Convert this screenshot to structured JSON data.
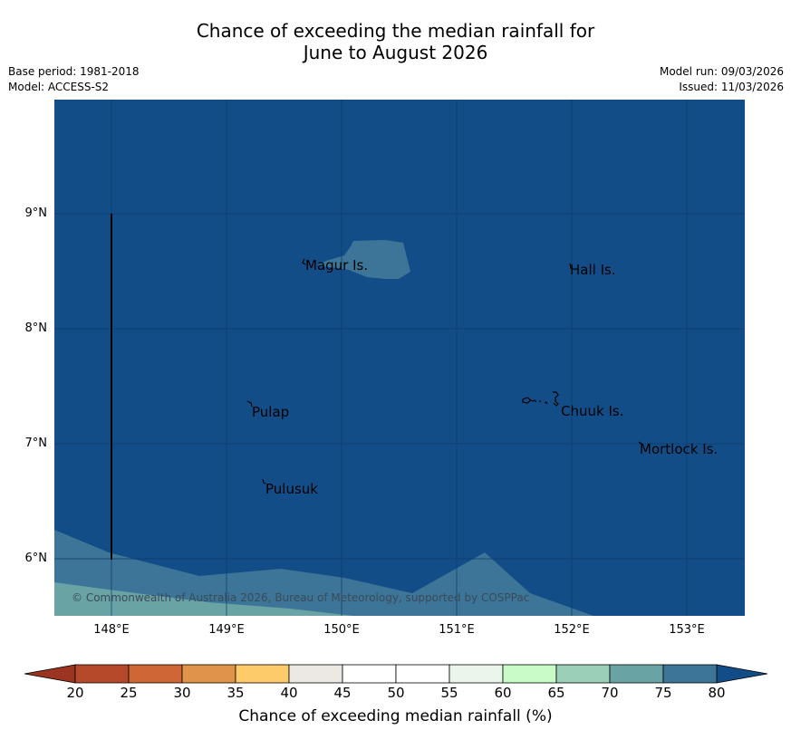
{
  "title": {
    "line1": "Chance of exceeding the median rainfall for",
    "line2": "June to August 2026"
  },
  "meta": {
    "base_period": "Base period: 1981-2018",
    "model": "Model: ACCESS-S2",
    "model_run": "Model run: 09/03/2026",
    "issued": "Issued: 11/03/2026"
  },
  "map": {
    "latitude_labels": [
      "9°N",
      "8°N",
      "7°N",
      "6°N"
    ],
    "longitude_labels": [
      "148°E",
      "149°E",
      "150°E",
      "151°E",
      "152°E",
      "153°E"
    ],
    "places": [
      "Magur Is.",
      "Hall Is.",
      "Pulap",
      "Chuuk Is.",
      "Mortlock Is.",
      "Pulusuk"
    ],
    "copyright": "© Commonwealth of Australia 2026, Bureau of Meteorology, supported by COSPPac"
  },
  "colorbar": {
    "ticks": [
      "20",
      "25",
      "30",
      "35",
      "40",
      "45",
      "50",
      "55",
      "60",
      "65",
      "70",
      "75",
      "80"
    ],
    "colors": [
      "#b5492a",
      "#cf6636",
      "#e0944a",
      "#fdcb69",
      "#ece8e3",
      "#ffffff",
      "#ffffff",
      "#ebf5eb",
      "#c9fbc9",
      "#9ccfb8",
      "#6aa3a3",
      "#3c7597"
    ],
    "under_color": "#9b3420",
    "over_color": "#134d87",
    "label": "Chance of exceeding median rainfall (%)"
  }
}
